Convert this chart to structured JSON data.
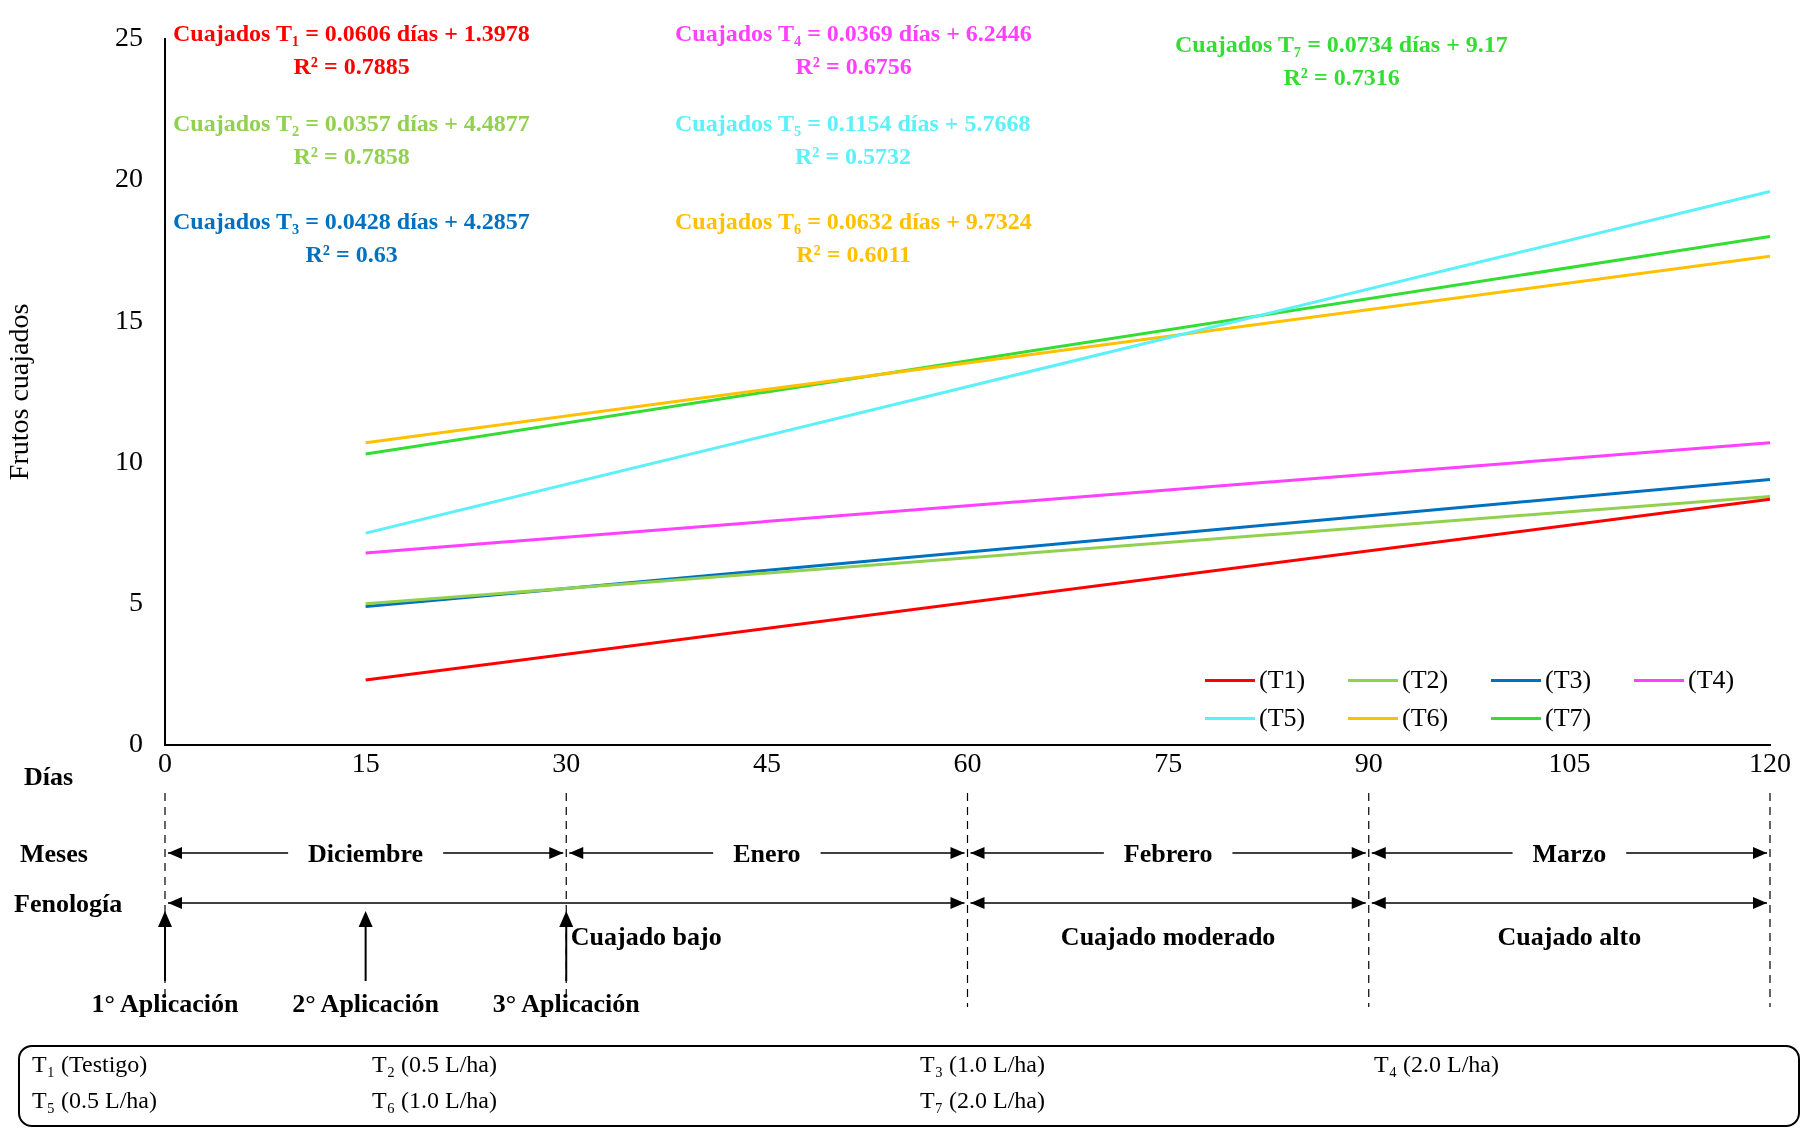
{
  "chart_data": {
    "type": "line",
    "ylabel": "Frutos cuajados",
    "xlabel": "Días",
    "xlim": [
      0,
      120
    ],
    "xticks": [
      0,
      15,
      30,
      45,
      60,
      75,
      90,
      105,
      120
    ],
    "ylim": [
      0,
      25
    ],
    "yticks": [
      0,
      5,
      10,
      15,
      20,
      25
    ],
    "grid": false,
    "legend": "bottom right",
    "marker": "none",
    "line_style": "solid",
    "x": [
      15,
      120
    ],
    "series": [
      {
        "name": "(T1)",
        "color": "#ff0000",
        "values": [
          2.3,
          8.7
        ]
      },
      {
        "name": "(T2)",
        "color": "#92d050",
        "values": [
          5.0,
          8.8
        ]
      },
      {
        "name": "(T3)",
        "color": "#0070c0",
        "values": [
          4.9,
          9.4
        ]
      },
      {
        "name": "(T4)",
        "color": "#ff40ff",
        "values": [
          6.8,
          10.7
        ]
      },
      {
        "name": "(T5)",
        "color": "#5cf0f8",
        "values": [
          7.5,
          19.6
        ]
      },
      {
        "name": "(T6)",
        "color": "#ffc000",
        "values": [
          10.7,
          17.3
        ]
      },
      {
        "name": "(T7)",
        "color": "#33dd33",
        "values": [
          10.3,
          18.0
        ]
      }
    ],
    "annotations": [
      "Cuajados T₁ = 0.0606 días + 1.3978\nR² = 0.7885",
      "Cuajados T₂ = 0.0357 días + 4.4877\nR² = 0.7858",
      "Cuajados T₃ = 0.0428 días + 4.2857\nR² = 0.63",
      "Cuajados T₄ = 0.0369 días + 6.2446\nR² = 0.6756",
      "Cuajados T₅ = 0.1154 días + 5.7668\nR² = 0.5732",
      "Cuajados T₆ = 0.0632 días + 9.7324\nR² = 0.6011",
      "Cuajados T₇ = 0.0734 días + 9.17\nR² = 0.7316",
      "Meses",
      "Fenología",
      "Diciembre",
      "Enero",
      "Febrero",
      "Marzo",
      "Cuajado bajo",
      "Cuajado moderado",
      "Cuajado alto",
      "1° Aplicación",
      "2° Aplicación",
      "3° Aplicación",
      "T₁ (Testigo)",
      "T₂ (0.5 L/ha)",
      "T₃ (1.0 L/ha)",
      "T₄ (2.0 L/ha)",
      "T₅ (0.5 L/ha)",
      "T₆ (1.0 L/ha)",
      "T₇ (2.0 L/ha)"
    ]
  }
}
